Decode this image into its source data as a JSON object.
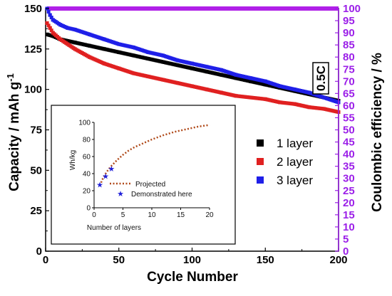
{
  "chart_data": {
    "type": "scatter",
    "main": {
      "xlabel": "Cycle Number",
      "ylabel": "Capacity / mAh g",
      "ylabel_superscript": "-1",
      "ylabel_right": "Coulombic efficiency / %",
      "xlim": [
        0,
        200
      ],
      "ylim": [
        0,
        150
      ],
      "ylim_right": [
        0,
        100
      ],
      "xticks": [
        "0",
        "50",
        "100",
        "150",
        "200"
      ],
      "yticks": [
        "0",
        "25",
        "50",
        "75",
        "100",
        "125",
        "150"
      ],
      "yticks_right": [
        "0",
        "5",
        "10",
        "15",
        "20",
        "25",
        "30",
        "35",
        "40",
        "45",
        "50",
        "55",
        "60",
        "65",
        "70",
        "75",
        "80",
        "85",
        "90",
        "95",
        "100"
      ],
      "rate_label": "0.5C",
      "grid": false,
      "legend_position": "right",
      "series": [
        {
          "name": "1 layer",
          "color": "#000000",
          "x": [
            1,
            5,
            10,
            20,
            30,
            40,
            50,
            60,
            70,
            80,
            90,
            100,
            110,
            120,
            130,
            140,
            150,
            160,
            170,
            180,
            190,
            200
          ],
          "y": [
            134,
            133,
            131,
            129,
            127,
            125,
            123,
            121,
            119,
            117,
            115,
            113,
            111,
            109,
            107,
            105,
            103,
            101,
            99,
            97,
            95,
            93
          ]
        },
        {
          "name": "2 layer",
          "color": "#e02020",
          "x": [
            1,
            3,
            5,
            10,
            15,
            20,
            30,
            40,
            50,
            60,
            70,
            80,
            90,
            100,
            110,
            120,
            130,
            140,
            150,
            160,
            170,
            180,
            190,
            200
          ],
          "y": [
            141,
            138,
            135,
            131,
            128,
            125,
            120,
            116,
            113,
            110,
            108,
            106,
            104,
            102,
            100,
            98,
            96,
            95,
            94,
            92,
            91,
            89,
            88,
            86
          ]
        },
        {
          "name": "3 layer",
          "color": "#1f1fe8",
          "x": [
            1,
            3,
            5,
            10,
            15,
            20,
            30,
            40,
            50,
            60,
            70,
            80,
            90,
            100,
            110,
            120,
            130,
            140,
            150,
            160,
            170,
            180,
            190,
            200
          ],
          "y": [
            150,
            146,
            143,
            140,
            138,
            137,
            134,
            131,
            128,
            126,
            123,
            121,
            118,
            116,
            114,
            112,
            109,
            107,
            105,
            102,
            100,
            98,
            95,
            92
          ]
        }
      ],
      "coulombic_efficiency": {
        "color": "#b020e8",
        "x": [
          1,
          200
        ],
        "y": [
          100,
          100
        ]
      }
    },
    "inset": {
      "xlabel": "Number of layers",
      "ylabel": "Wh/kg",
      "xlim": [
        0,
        20
      ],
      "ylim": [
        0,
        100
      ],
      "xticks": [
        "0",
        "5",
        "10",
        "15",
        "20"
      ],
      "yticks": [
        "0",
        "20",
        "40",
        "60",
        "80",
        "100"
      ],
      "series": [
        {
          "name": "Projected",
          "color": "#b04a1a",
          "style": "dotted",
          "x": [
            1,
            1.5,
            2,
            2.5,
            3,
            4,
            5,
            6,
            7,
            8,
            10,
            12,
            14,
            16,
            18,
            20
          ],
          "y": [
            26,
            34,
            40,
            45,
            49,
            56,
            62,
            67,
            71,
            74,
            80,
            85,
            89,
            92,
            95,
            97
          ]
        },
        {
          "name": "Demonstrated here",
          "color": "#1f1fd8",
          "marker": "star",
          "x": [
            1,
            2,
            3
          ],
          "y": [
            27,
            37,
            46
          ]
        }
      ]
    }
  }
}
